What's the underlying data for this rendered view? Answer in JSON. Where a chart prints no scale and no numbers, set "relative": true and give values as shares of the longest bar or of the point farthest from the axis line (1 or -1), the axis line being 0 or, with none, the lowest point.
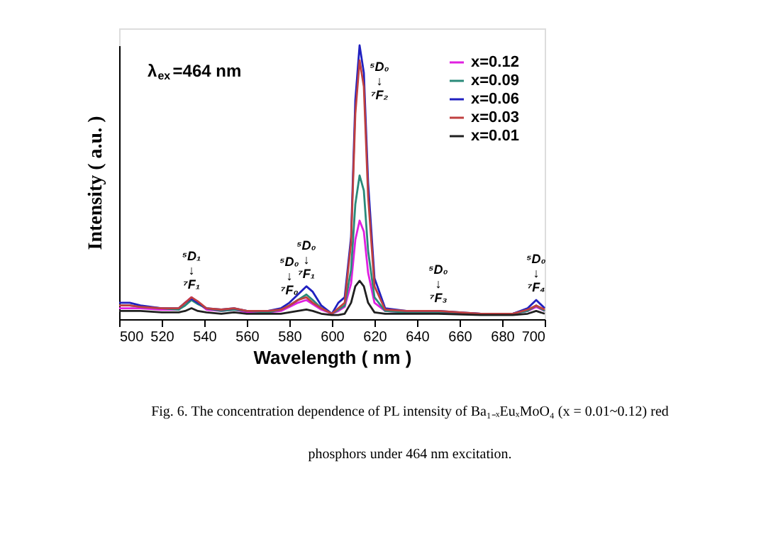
{
  "chart_data": {
    "type": "line",
    "relative": true,
    "xlabel": "Wavelength ( nm )",
    "ylabel": "Intensity ( a.u. )",
    "x": [
      500,
      505,
      510,
      520,
      528,
      531,
      534,
      537,
      541,
      548,
      554,
      560,
      570,
      576,
      580,
      584,
      588,
      591,
      595,
      600,
      603,
      606,
      609,
      611,
      613,
      615,
      617,
      620,
      625,
      635,
      650,
      670,
      685,
      692,
      696,
      700
    ],
    "xlim": [
      500,
      700
    ],
    "xticks": [
      500,
      520,
      540,
      560,
      580,
      600,
      620,
      640,
      660,
      680,
      700
    ],
    "legend": "top right",
    "line_style": "solid",
    "series": [
      {
        "name": "x=0.12",
        "color": "#e020e0",
        "values": [
          0.04,
          0.04,
          0.04,
          0.035,
          0.035,
          0.06,
          0.08,
          0.06,
          0.035,
          0.03,
          0.035,
          0.025,
          0.025,
          0.03,
          0.045,
          0.06,
          0.07,
          0.055,
          0.035,
          0.02,
          0.03,
          0.045,
          0.13,
          0.29,
          0.36,
          0.32,
          0.17,
          0.06,
          0.03,
          0.025,
          0.025,
          0.02,
          0.02,
          0.03,
          0.045,
          0.03
        ]
      },
      {
        "name": "x=0.09",
        "color": "#2a8a7a",
        "values": [
          0.05,
          0.05,
          0.045,
          0.04,
          0.035,
          0.05,
          0.07,
          0.055,
          0.04,
          0.03,
          0.035,
          0.03,
          0.025,
          0.035,
          0.05,
          0.07,
          0.09,
          0.07,
          0.04,
          0.02,
          0.035,
          0.05,
          0.18,
          0.42,
          0.525,
          0.47,
          0.25,
          0.08,
          0.03,
          0.025,
          0.025,
          0.02,
          0.02,
          0.03,
          0.05,
          0.03
        ]
      },
      {
        "name": "x=0.06",
        "color": "#2020c0",
        "values": [
          0.06,
          0.06,
          0.05,
          0.04,
          0.04,
          0.06,
          0.075,
          0.06,
          0.04,
          0.035,
          0.04,
          0.03,
          0.03,
          0.04,
          0.06,
          0.09,
          0.12,
          0.1,
          0.05,
          0.02,
          0.06,
          0.08,
          0.3,
          0.8,
          1.0,
          0.9,
          0.5,
          0.15,
          0.04,
          0.03,
          0.03,
          0.02,
          0.02,
          0.04,
          0.07,
          0.04
        ]
      },
      {
        "name": "x=0.03",
        "color": "#c04040",
        "values": [
          0.05,
          0.05,
          0.045,
          0.04,
          0.04,
          0.06,
          0.08,
          0.065,
          0.04,
          0.035,
          0.04,
          0.03,
          0.03,
          0.035,
          0.05,
          0.07,
          0.08,
          0.06,
          0.04,
          0.02,
          0.04,
          0.06,
          0.28,
          0.75,
          0.945,
          0.85,
          0.45,
          0.12,
          0.035,
          0.03,
          0.03,
          0.02,
          0.02,
          0.035,
          0.05,
          0.035
        ]
      },
      {
        "name": "x=0.01",
        "color": "#202020",
        "values": [
          0.03,
          0.03,
          0.03,
          0.025,
          0.025,
          0.03,
          0.04,
          0.03,
          0.025,
          0.02,
          0.025,
          0.02,
          0.02,
          0.02,
          0.025,
          0.03,
          0.035,
          0.03,
          0.02,
          0.015,
          0.015,
          0.02,
          0.06,
          0.12,
          0.14,
          0.12,
          0.06,
          0.025,
          0.02,
          0.02,
          0.02,
          0.015,
          0.015,
          0.02,
          0.03,
          0.02
        ]
      }
    ],
    "annotations": [
      "λ$_{ex}$=464 nm",
      {
        "text": "⁵D₁\n↓\n⁷F₁",
        "x": 534,
        "y": 0.08
      },
      {
        "text": "⁵D₀\n↓\n⁷F₀",
        "x": 580,
        "y": 0.06
      },
      {
        "text": "⁵D₀\n↓\n⁷F₁",
        "x": 588,
        "y": 0.12
      },
      {
        "text": "⁵D₀\n↓\n⁷F₂",
        "x": 613,
        "y": 1.0
      },
      {
        "text": "⁵D₀\n↓\n⁷F₃",
        "x": 650,
        "y": 0.03
      },
      {
        "text": "⁵D₀\n↓\n⁷F₄",
        "x": 696,
        "y": 0.07
      },
      "Fig. 6. The concentration dependence of PL intensity of Ba₁₋ₓEuₓMoO₄ (x = 0.01~0.12) red phosphors under 464 nm excitation."
    ]
  }
}
